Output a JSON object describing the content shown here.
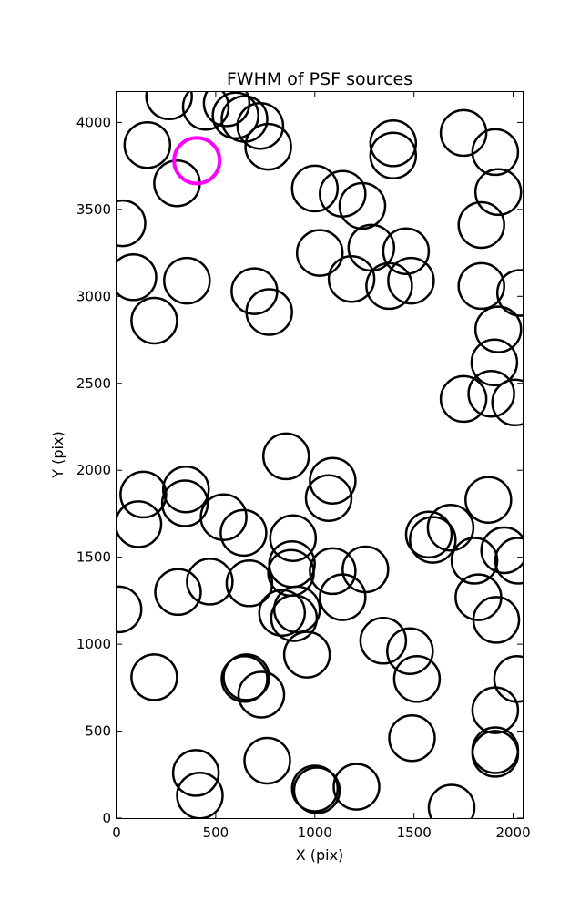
{
  "chart_data": {
    "type": "scatter",
    "title": "FWHM of PSF sources",
    "xlabel": "X (pix)",
    "ylabel": "Y (pix)",
    "xlim": [
      0,
      2048
    ],
    "ylim": [
      0,
      4175
    ],
    "xticks": [
      0,
      500,
      1000,
      1500,
      2000
    ],
    "yticks": [
      0,
      500,
      1000,
      1500,
      2000,
      2500,
      3000,
      3500,
      4000
    ],
    "grid": false,
    "marker": "open-circle",
    "series": [
      {
        "color": "#000000",
        "points": [
          [
            265,
            4150
          ],
          [
            450,
            4090
          ],
          [
            555,
            4110
          ],
          [
            600,
            4040
          ],
          [
            645,
            4020
          ],
          [
            725,
            3980
          ],
          [
            765,
            3860
          ],
          [
            155,
            3870
          ],
          [
            305,
            3650
          ],
          [
            1000,
            3620
          ],
          [
            1140,
            3590
          ],
          [
            1240,
            3520
          ],
          [
            1395,
            3880
          ],
          [
            1395,
            3810
          ],
          [
            1750,
            3940
          ],
          [
            1910,
            3830
          ],
          [
            1925,
            3600
          ],
          [
            1840,
            3410
          ],
          [
            30,
            3420
          ],
          [
            1025,
            3250
          ],
          [
            1285,
            3280
          ],
          [
            1460,
            3260
          ],
          [
            85,
            3110
          ],
          [
            355,
            3090
          ],
          [
            695,
            3030
          ],
          [
            1185,
            3100
          ],
          [
            1375,
            3060
          ],
          [
            1485,
            3090
          ],
          [
            1840,
            3060
          ],
          [
            2035,
            3020
          ],
          [
            770,
            2910
          ],
          [
            190,
            2860
          ],
          [
            1925,
            2810
          ],
          [
            1905,
            2620
          ],
          [
            1890,
            2440
          ],
          [
            1750,
            2410
          ],
          [
            2010,
            2390
          ],
          [
            855,
            2080
          ],
          [
            1090,
            1940
          ],
          [
            1070,
            1840
          ],
          [
            135,
            1860
          ],
          [
            350,
            1890
          ],
          [
            345,
            1810
          ],
          [
            540,
            1730
          ],
          [
            110,
            1690
          ],
          [
            640,
            1640
          ],
          [
            1575,
            1630
          ],
          [
            1595,
            1600
          ],
          [
            1685,
            1670
          ],
          [
            1875,
            1830
          ],
          [
            890,
            1610
          ],
          [
            1805,
            1480
          ],
          [
            1955,
            1540
          ],
          [
            2025,
            1480
          ],
          [
            885,
            1460
          ],
          [
            880,
            1410
          ],
          [
            1090,
            1420
          ],
          [
            1255,
            1430
          ],
          [
            470,
            1360
          ],
          [
            670,
            1350
          ],
          [
            310,
            1300
          ],
          [
            1140,
            1270
          ],
          [
            1825,
            1270
          ],
          [
            10,
            1200
          ],
          [
            835,
            1180
          ],
          [
            910,
            1200
          ],
          [
            895,
            1150
          ],
          [
            1915,
            1140
          ],
          [
            960,
            940
          ],
          [
            1345,
            1020
          ],
          [
            1480,
            960
          ],
          [
            1515,
            800
          ],
          [
            190,
            810
          ],
          [
            645,
            800
          ],
          [
            655,
            810
          ],
          [
            730,
            710
          ],
          [
            2020,
            800
          ],
          [
            1910,
            620
          ],
          [
            1910,
            390
          ],
          [
            1910,
            370
          ],
          [
            760,
            330
          ],
          [
            1490,
            460
          ],
          [
            400,
            260
          ],
          [
            420,
            130
          ],
          [
            1000,
            170
          ],
          [
            1010,
            160
          ],
          [
            1210,
            180
          ],
          [
            1690,
            60
          ]
        ]
      },
      {
        "color": "#ff00ff",
        "points": [
          [
            405,
            3780
          ]
        ]
      }
    ]
  }
}
